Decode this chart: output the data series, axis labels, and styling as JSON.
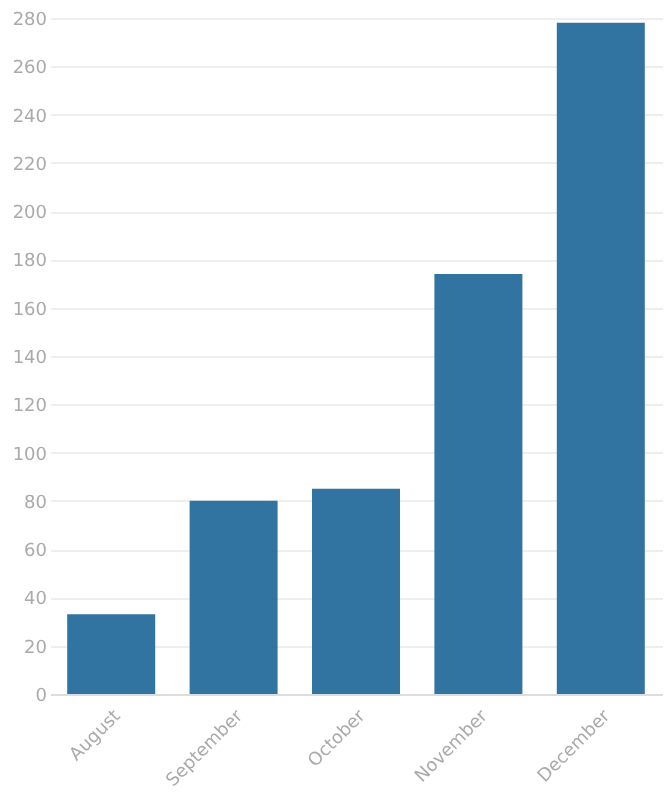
{
  "chart_data": {
    "type": "bar",
    "categories": [
      "August",
      "September",
      "October",
      "November",
      "December"
    ],
    "values": [
      33,
      80,
      85,
      174,
      278
    ],
    "color": "#3274a1",
    "ylim": [
      0,
      280
    ],
    "yticks": [
      0,
      20,
      40,
      60,
      80,
      100,
      120,
      140,
      160,
      180,
      200,
      220,
      240,
      260,
      280
    ],
    "grid": "y"
  }
}
